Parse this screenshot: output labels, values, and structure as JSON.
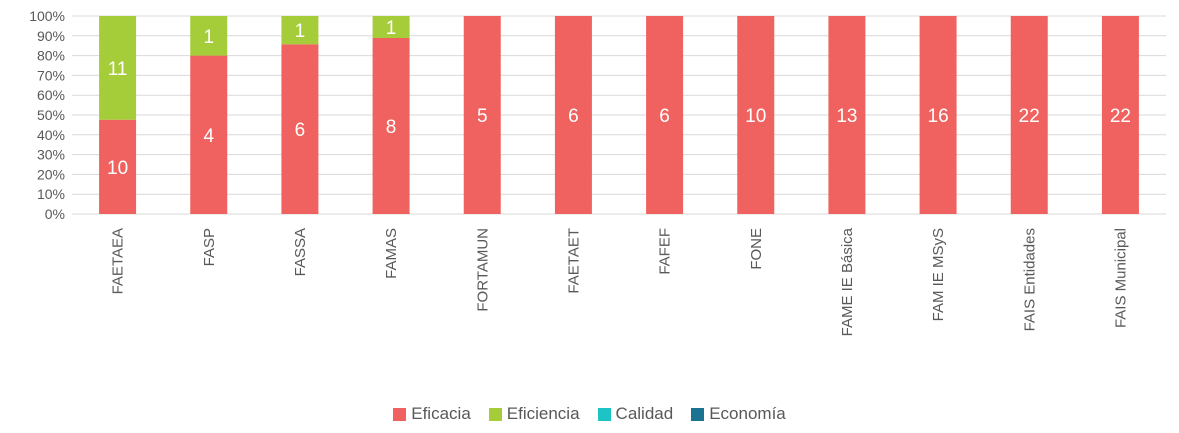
{
  "chart_data": {
    "type": "bar",
    "stacked": "percent",
    "categories": [
      "FAETAEA",
      "FASP",
      "FASSA",
      "FAMAS",
      "FORTAMUN",
      "FAETAET",
      "FAFEF",
      "FONE",
      "FAME IE Básica",
      "FAM IE MSyS",
      "FAIS Entidades",
      "FAIS Municipal"
    ],
    "series": [
      {
        "name": "Eficacia",
        "color": "#f0625f",
        "values": [
          10,
          4,
          6,
          8,
          5,
          6,
          6,
          10,
          13,
          16,
          22,
          22
        ]
      },
      {
        "name": "Eficiencia",
        "color": "#a5cd39",
        "values": [
          11,
          1,
          1,
          1,
          0,
          0,
          0,
          0,
          0,
          0,
          0,
          0
        ]
      },
      {
        "name": "Calidad",
        "color": "#1ec3c6",
        "values": [
          0,
          0,
          0,
          0,
          0,
          0,
          0,
          0,
          0,
          0,
          0,
          0
        ]
      },
      {
        "name": "Economía",
        "color": "#1c7291",
        "values": [
          0,
          0,
          0,
          0,
          0,
          0,
          0,
          0,
          0,
          0,
          0,
          0
        ]
      }
    ],
    "y_ticks": [
      "0%",
      "10%",
      "20%",
      "30%",
      "40%",
      "50%",
      "60%",
      "70%",
      "80%",
      "90%",
      "100%"
    ],
    "ylim": [
      0,
      100
    ],
    "grid": true,
    "legend_position": "bottom"
  }
}
